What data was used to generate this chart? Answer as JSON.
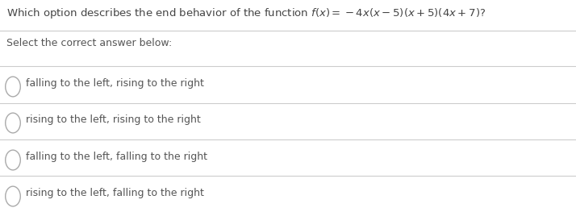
{
  "title_plain": "Which option describes the end behavior of the function ",
  "title_math": "$f(x) = -4x(x-5)(x+5)(4x+7)$?",
  "subtitle": "Select the correct answer below:",
  "options": [
    "falling to the left, rising to the right",
    "rising to the left, rising to the right",
    "falling to the left, falling to the right",
    "rising to the left, falling to the right"
  ],
  "background_color": "#ffffff",
  "text_color": "#555555",
  "title_color": "#444444",
  "line_color": "#cccccc",
  "circle_edge_color": "#aaaaaa",
  "title_fontsize": 9.5,
  "subtitle_fontsize": 9.0,
  "option_fontsize": 9.0,
  "figwidth": 7.14,
  "figheight": 2.58,
  "dpi": 100
}
